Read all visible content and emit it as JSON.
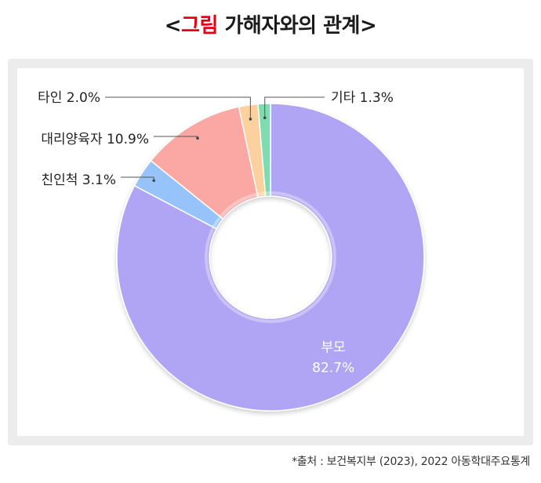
{
  "title": {
    "open_bracket": "<",
    "highlight": "그림",
    "rest": "가해자와의 관계",
    "close_bracket": ">"
  },
  "source_note": "*출처 : 보건복지부 (2023), 2022 아동학대주요통계",
  "colors": {
    "title_accent": "#e60012",
    "parents": "#b0a4f4",
    "relatives": "#96c4fa",
    "foster": "#fba8a4",
    "stranger": "#fcd19f",
    "other": "#7fdcae"
  },
  "chart_data": {
    "type": "pie",
    "donut": true,
    "title": "그림 가해자와의 관계",
    "slices": [
      {
        "label": "부모",
        "value": 82.7,
        "display": "82.7%",
        "color": "#b0a4f4",
        "label_position": "inside"
      },
      {
        "label": "친인척",
        "value": 3.1,
        "display": "3.1%",
        "color": "#96c4fa",
        "label_position": "left"
      },
      {
        "label": "대리양육자",
        "value": 10.9,
        "display": "10.9%",
        "color": "#fba8a4",
        "label_position": "left"
      },
      {
        "label": "타인",
        "value": 2.0,
        "display": "2.0%",
        "color": "#fcd19f",
        "label_position": "left"
      },
      {
        "label": "기타",
        "value": 1.3,
        "display": "1.3%",
        "color": "#7fdcae",
        "label_position": "right"
      }
    ]
  }
}
